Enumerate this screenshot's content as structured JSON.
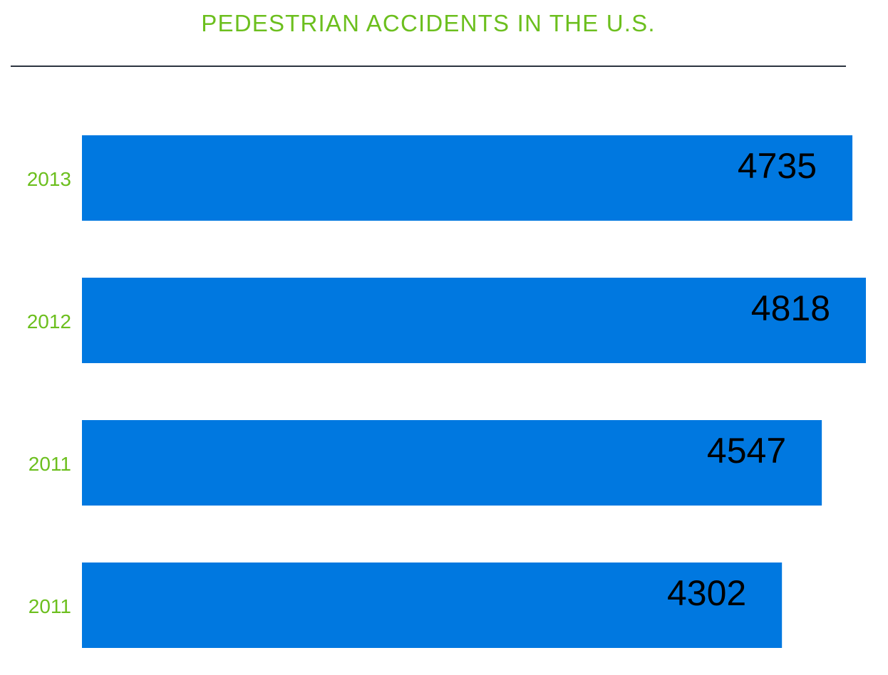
{
  "chart_data": {
    "type": "bar",
    "orientation": "horizontal",
    "title": "PEDESTRIAN ACCIDENTS IN THE U.S.",
    "xlabel": "",
    "ylabel": "",
    "categories": [
      "2013",
      "2012",
      "2011",
      "2011"
    ],
    "values": [
      4735,
      4818,
      4547,
      4302
    ],
    "xlim": [
      0,
      4818
    ],
    "grid": false,
    "legend": "none",
    "data_labels": true
  },
  "colors": {
    "bar": "#0078e0",
    "title": "#6cbf1e",
    "category_label": "#6cbf1e",
    "value_label": "#000000",
    "rule": "#2c3440"
  }
}
